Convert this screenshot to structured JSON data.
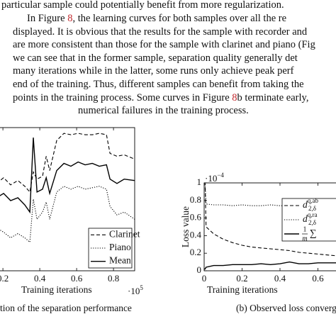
{
  "paragraph": {
    "lines": [
      [
        {
          "text": "particular sample could potentially benefit from more regularization."
        }
      ],
      [
        {
          "text": "In Figure "
        },
        {
          "text": "8",
          "link": true
        },
        {
          "text": ", the learning curves for both samples over all the re"
        }
      ],
      [
        {
          "text": "displayed. It is obvious that the results for the sample with recorder and"
        }
      ],
      [
        {
          "text": "are more consistent than those for the sample with clarinet and piano (Fig"
        }
      ],
      [
        {
          "text": "we can see that in the former sample, separation quality generally det"
        }
      ],
      [
        {
          "text": "many iterations while in the latter, some runs only achieve peak perf"
        }
      ],
      [
        {
          "text": "end of the training. Thus, different samples can benefit from taking the"
        }
      ],
      [
        {
          "text": "points in the training process. Some curves in Figure "
        },
        {
          "text": "8",
          "link": true
        },
        {
          "text": "b terminate early,"
        }
      ],
      [
        {
          "text": "numerical failures in the training process."
        }
      ]
    ]
  },
  "chart_data": [
    {
      "type": "line",
      "x": [
        0.165,
        0.204,
        0.242,
        0.281,
        0.319,
        0.346,
        0.365,
        0.385,
        0.415,
        0.435,
        0.454,
        0.492,
        0.531,
        0.569,
        0.608,
        0.646,
        0.685,
        0.723,
        0.762,
        0.781,
        0.819,
        0.858,
        0.915
      ],
      "series": [
        {
          "name": "Clarinet",
          "color": "#000000",
          "line_style": "dashed",
          "values": [
            0.61,
            0.65,
            0.6,
            0.63,
            0.59,
            0.55,
            0.69,
            0.64,
            0.66,
            0.8,
            0.7,
            0.91,
            0.96,
            0.95,
            0.96,
            0.95,
            0.95,
            0.96,
            0.95,
            0.82,
            0.8,
            0.81,
            0.78
          ]
        },
        {
          "name": "Piano",
          "color": "#000000",
          "line_style": "dotted",
          "values": [
            0.3,
            0.27,
            0.23,
            0.26,
            0.23,
            0.2,
            0.5,
            0.36,
            0.41,
            0.48,
            0.36,
            0.55,
            0.59,
            0.57,
            0.59,
            0.57,
            0.58,
            0.59,
            0.57,
            0.45,
            0.39,
            0.41,
            0.36
          ]
        },
        {
          "name": "Mean",
          "color": "#000000",
          "line_style": "solid",
          "values": [
            0.51,
            0.54,
            0.49,
            0.51,
            0.46,
            0.41,
            0.93,
            0.55,
            0.57,
            0.65,
            0.54,
            0.7,
            0.75,
            0.73,
            0.76,
            0.74,
            0.75,
            0.73,
            0.74,
            0.64,
            0.61,
            0.64,
            0.63
          ]
        }
      ],
      "xlim": [
        0.165,
        0.915
      ],
      "ylim": [
        0,
        1
      ],
      "xticks": [
        0.2,
        0.4,
        0.6,
        0.8
      ],
      "x_label": "Training iterations",
      "x_scale": {
        "base": "·10",
        "power": "5"
      },
      "legend": "lower right",
      "caption": "tion of the separation performance"
    },
    {
      "type": "line",
      "x": [
        0,
        0.005,
        0.01,
        0.05,
        0.1,
        0.15,
        0.2,
        0.25,
        0.3,
        0.35,
        0.4,
        0.45,
        0.5,
        0.55,
        0.6,
        0.65,
        0.7,
        0.75
      ],
      "series": [
        {
          "name": "d",
          "name_sub": "2,δ",
          "name_sup": "q,ab",
          "color": "#000000",
          "line_style": "dashed",
          "values": [
            1.0,
            1.0,
            0.5,
            0.42,
            0.36,
            0.32,
            0.29,
            0.27,
            0.26,
            0.25,
            0.24,
            0.23,
            0.21,
            0.2,
            0.19,
            0.18,
            0.17,
            0.16
          ]
        },
        {
          "name": "d",
          "name_sub": "2,δ",
          "name_sup": "q,ra",
          "color": "#000000",
          "line_style": "dotted",
          "values": [
            1.0,
            1.0,
            0.76,
            0.75,
            0.75,
            0.74,
            0.75,
            0.74,
            0.74,
            0.75,
            0.74,
            0.74,
            0.73,
            0.74,
            0.74,
            0.73,
            0.74,
            0.73
          ]
        },
        {
          "name": "∑",
          "name_numerator": "1",
          "name_denominator": "m",
          "color": "#000000",
          "line_style": "solid",
          "values": [
            0.02,
            0.02,
            0.04,
            0.06,
            0.06,
            0.07,
            0.07,
            0.07,
            0.08,
            0.07,
            0.08,
            0.1,
            0.08,
            0.08,
            0.09,
            0.09,
            0.09,
            0.09
          ]
        }
      ],
      "xlim": [
        0,
        0.8
      ],
      "ylim": [
        0,
        1
      ],
      "xticks": [
        0,
        0.2,
        0.4,
        0.6
      ],
      "yticks": [
        0,
        0.2,
        0.4,
        0.6,
        0.8,
        1
      ],
      "x_label": "Training iterations",
      "y_label": "Loss value",
      "y_scale": {
        "base": "·10",
        "power": "−4"
      },
      "legend": "upper right",
      "caption": "(b) Observed loss converge"
    }
  ]
}
